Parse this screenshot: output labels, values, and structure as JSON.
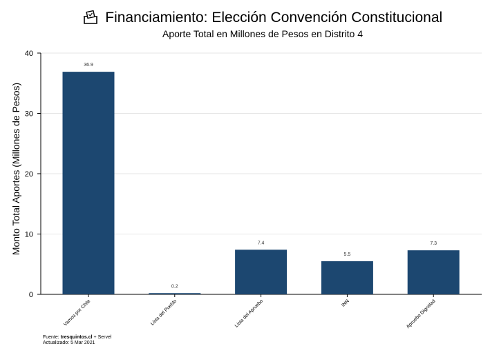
{
  "header": {
    "title": "Financiamiento: Elección Convención Constitucional",
    "subtitle": "Aporte Total en Millones de Pesos en Distrito 4",
    "icon": "ballot-box-icon"
  },
  "footer": {
    "source_prefix": "Fuente: ",
    "source_site": "tresquintos.cl",
    "source_suffix": " + Servel",
    "updated": "Actualizado: 5 Mar 2021"
  },
  "colors": {
    "bar": "#1c4770",
    "grid": "#e6e6e6",
    "axis": "#000000"
  },
  "chart_data": {
    "type": "bar",
    "title": "Financiamiento: Elección Convención Constitucional",
    "subtitle": "Aporte Total en Millones de Pesos en Distrito 4",
    "xlabel": "",
    "ylabel": "Monto Total Aportes (Millones de Pesos)",
    "categories": [
      "Vamos por Chile",
      "Lista del Pueblo",
      "Lista del Apruebo",
      "INN",
      "Apruebo Dignidad"
    ],
    "values": [
      36.9,
      0.2,
      7.4,
      5.5,
      7.3
    ],
    "data_labels": [
      "36.9",
      "0.2",
      "7.4",
      "5.5",
      "7.3"
    ],
    "ylim": [
      0,
      40
    ],
    "yticks": [
      0,
      10,
      20,
      30,
      40
    ],
    "grid": true,
    "legend": "none"
  }
}
